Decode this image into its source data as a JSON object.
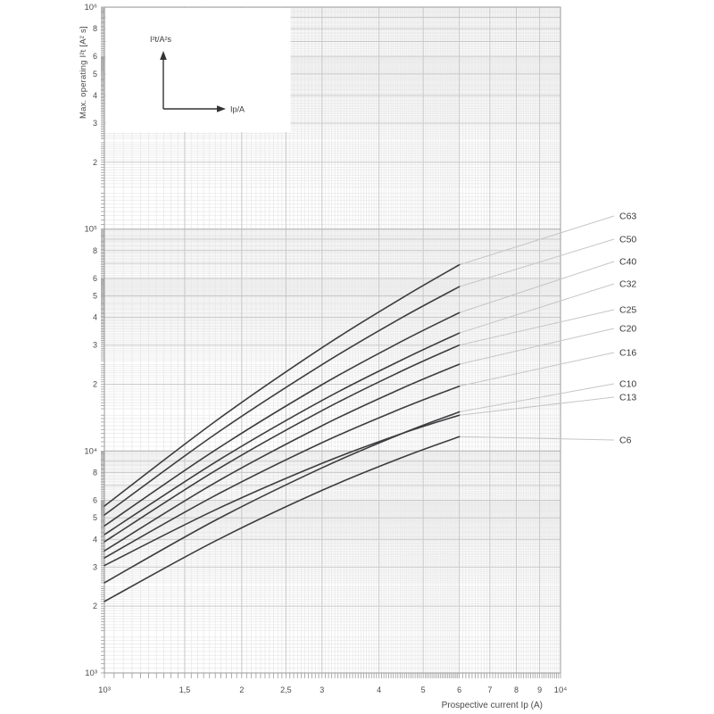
{
  "chart_data": {
    "type": "line",
    "title": "",
    "scale": "log-log",
    "grid": "fine logarithmic grid, minor steps 0.05/0.1 per decade",
    "legend_position": "right-side leader-line labels",
    "x_axis": {
      "label": "Prospective current Ip (A)",
      "scale": "log",
      "range": [
        1000,
        10000
      ],
      "ticks": [
        {
          "v": 1000,
          "label": "10³"
        },
        {
          "v": 1500,
          "label": "1,5"
        },
        {
          "v": 2000,
          "label": "2"
        },
        {
          "v": 2500,
          "label": "2,5"
        },
        {
          "v": 3000,
          "label": "3"
        },
        {
          "v": 4000,
          "label": "4"
        },
        {
          "v": 5000,
          "label": "5"
        },
        {
          "v": 6000,
          "label": "6"
        },
        {
          "v": 7000,
          "label": "7"
        },
        {
          "v": 8000,
          "label": "8"
        },
        {
          "v": 9000,
          "label": "9"
        },
        {
          "v": 10000,
          "label": "10⁴"
        }
      ]
    },
    "y_axis": {
      "label": "Max. operating I²t [A² s]",
      "scale": "log",
      "range": [
        1000,
        1000000
      ],
      "ticks": [
        {
          "v": 1000000,
          "label": "10⁶"
        },
        {
          "v": 800000,
          "label": "8"
        },
        {
          "v": 600000,
          "label": "6"
        },
        {
          "v": 500000,
          "label": "5"
        },
        {
          "v": 400000,
          "label": "4"
        },
        {
          "v": 300000,
          "label": "3"
        },
        {
          "v": 200000,
          "label": "2"
        },
        {
          "v": 100000,
          "label": "10⁵"
        },
        {
          "v": 80000,
          "label": "8"
        },
        {
          "v": 60000,
          "label": "6"
        },
        {
          "v": 50000,
          "label": "5"
        },
        {
          "v": 40000,
          "label": "4"
        },
        {
          "v": 30000,
          "label": "3"
        },
        {
          "v": 20000,
          "label": "2"
        },
        {
          "v": 10000,
          "label": "10⁴"
        },
        {
          "v": 8000,
          "label": "8"
        },
        {
          "v": 6000,
          "label": "6"
        },
        {
          "v": 5000,
          "label": "5"
        },
        {
          "v": 4000,
          "label": "4"
        },
        {
          "v": 3000,
          "label": "3"
        },
        {
          "v": 2000,
          "label": "2"
        },
        {
          "v": 1000,
          "label": "10³"
        }
      ]
    },
    "inset_axes_key": {
      "vertical_label": "I²t/A²s",
      "horizontal_label": "Ip/A"
    },
    "series": [
      {
        "name": "C63",
        "points": [
          [
            1000,
            5650
          ],
          [
            1750,
            13600
          ],
          [
            3000,
            29200
          ],
          [
            4500,
            49000
          ],
          [
            6000,
            69000
          ]
        ]
      },
      {
        "name": "C50",
        "points": [
          [
            1000,
            5150
          ],
          [
            1750,
            11900
          ],
          [
            3000,
            24500
          ],
          [
            4500,
            40000
          ],
          [
            6000,
            55000
          ]
        ]
      },
      {
        "name": "C40",
        "points": [
          [
            1000,
            4600
          ],
          [
            1750,
            10100
          ],
          [
            3000,
            19900
          ],
          [
            4500,
            31300
          ],
          [
            6000,
            42000
          ]
        ]
      },
      {
        "name": "C32",
        "points": [
          [
            1000,
            4200
          ],
          [
            1750,
            8900
          ],
          [
            3000,
            16900
          ],
          [
            4500,
            25800
          ],
          [
            6000,
            34000
          ]
        ]
      },
      {
        "name": "C25",
        "points": [
          [
            1000,
            3900
          ],
          [
            1750,
            8150
          ],
          [
            3000,
            15200
          ],
          [
            4500,
            23000
          ],
          [
            6000,
            30000
          ]
        ]
      },
      {
        "name": "C20",
        "points": [
          [
            1000,
            3550
          ],
          [
            1750,
            7200
          ],
          [
            3000,
            13000
          ],
          [
            4500,
            19200
          ],
          [
            6000,
            24600
          ]
        ]
      },
      {
        "name": "C16",
        "points": [
          [
            1000,
            3300
          ],
          [
            1750,
            6300
          ],
          [
            3000,
            10900
          ],
          [
            4500,
            15600
          ],
          [
            6000,
            19600
          ]
        ]
      },
      {
        "name": "C10",
        "points": [
          [
            1000,
            2550
          ],
          [
            1750,
            4870
          ],
          [
            3000,
            8400
          ],
          [
            4500,
            12000
          ],
          [
            6000,
            15000
          ]
        ]
      },
      {
        "name": "C13",
        "points": [
          [
            1000,
            3050
          ],
          [
            1750,
            5430
          ],
          [
            3000,
            8800
          ],
          [
            4500,
            12000
          ],
          [
            6000,
            14500
          ]
        ]
      },
      {
        "name": "C6",
        "points": [
          [
            1000,
            2100
          ],
          [
            1750,
            3930
          ],
          [
            3000,
            6650
          ],
          [
            4500,
            9360
          ],
          [
            6000,
            11600
          ]
        ]
      }
    ],
    "series_label_order_top_to_bottom": [
      "C63",
      "C50",
      "C40",
      "C32",
      "C25",
      "C20",
      "C16",
      "C10",
      "C13",
      "C6"
    ]
  },
  "colors": {
    "curve": "#3d3d40",
    "decade_grid": "#b5b5b5",
    "major_grid": "#c7c7c7",
    "minor_grid": "#e7e7e7",
    "frame": "#9a9a9a",
    "leader": "#c6c6c6",
    "tick_text": "#4a4a4a",
    "curve_label_text": "#3a3a3a",
    "arrow": "#333333"
  }
}
